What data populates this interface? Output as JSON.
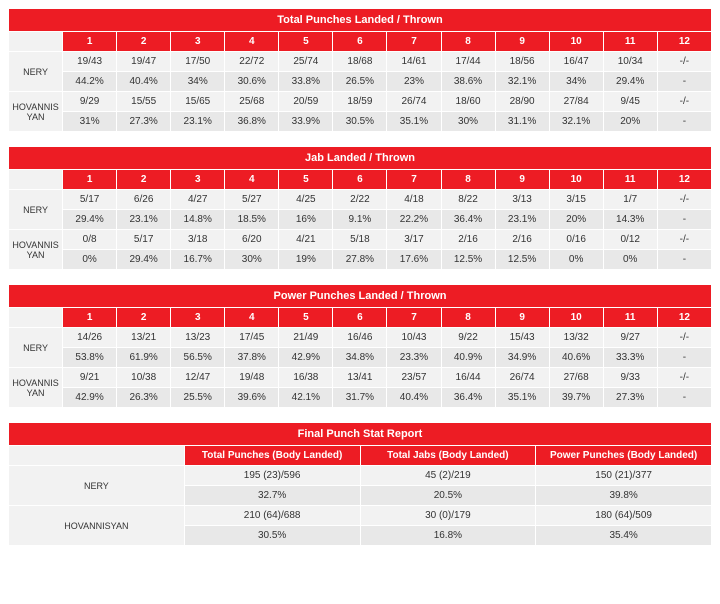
{
  "colors": {
    "header_bg": "#ed1c24",
    "header_text": "#ffffff",
    "row_alt_a": "#f2f2f2",
    "row_alt_b": "#e8e8e8",
    "text": "#333333",
    "border": "#ffffff"
  },
  "fighters": [
    "NERY",
    "HOVANNISYAN"
  ],
  "rounds": [
    "1",
    "2",
    "3",
    "4",
    "5",
    "6",
    "7",
    "8",
    "9",
    "10",
    "11",
    "12"
  ],
  "tables": [
    {
      "title": "Total Punches Landed / Thrown",
      "rows": [
        {
          "name": "NERY",
          "vals": [
            "19/43",
            "19/47",
            "17/50",
            "22/72",
            "25/74",
            "18/68",
            "14/61",
            "17/44",
            "18/56",
            "16/47",
            "10/34",
            "-/-"
          ]
        },
        {
          "name": "",
          "vals": [
            "44.2%",
            "40.4%",
            "34%",
            "30.6%",
            "33.8%",
            "26.5%",
            "23%",
            "38.6%",
            "32.1%",
            "34%",
            "29.4%",
            "-"
          ]
        },
        {
          "name": "HOVANNISYAN",
          "vals": [
            "9/29",
            "15/55",
            "15/65",
            "25/68",
            "20/59",
            "18/59",
            "26/74",
            "18/60",
            "28/90",
            "27/84",
            "9/45",
            "-/-"
          ]
        },
        {
          "name": "",
          "vals": [
            "31%",
            "27.3%",
            "23.1%",
            "36.8%",
            "33.9%",
            "30.5%",
            "35.1%",
            "30%",
            "31.1%",
            "32.1%",
            "20%",
            "-"
          ]
        }
      ]
    },
    {
      "title": "Jab Landed / Thrown",
      "rows": [
        {
          "name": "NERY",
          "vals": [
            "5/17",
            "6/26",
            "4/27",
            "5/27",
            "4/25",
            "2/22",
            "4/18",
            "8/22",
            "3/13",
            "3/15",
            "1/7",
            "-/-"
          ]
        },
        {
          "name": "",
          "vals": [
            "29.4%",
            "23.1%",
            "14.8%",
            "18.5%",
            "16%",
            "9.1%",
            "22.2%",
            "36.4%",
            "23.1%",
            "20%",
            "14.3%",
            "-"
          ]
        },
        {
          "name": "HOVANNISYAN",
          "vals": [
            "0/8",
            "5/17",
            "3/18",
            "6/20",
            "4/21",
            "5/18",
            "3/17",
            "2/16",
            "2/16",
            "0/16",
            "0/12",
            "-/-"
          ]
        },
        {
          "name": "",
          "vals": [
            "0%",
            "29.4%",
            "16.7%",
            "30%",
            "19%",
            "27.8%",
            "17.6%",
            "12.5%",
            "12.5%",
            "0%",
            "0%",
            "-"
          ]
        }
      ]
    },
    {
      "title": "Power Punches Landed / Thrown",
      "rows": [
        {
          "name": "NERY",
          "vals": [
            "14/26",
            "13/21",
            "13/23",
            "17/45",
            "21/49",
            "16/46",
            "10/43",
            "9/22",
            "15/43",
            "13/32",
            "9/27",
            "-/-"
          ]
        },
        {
          "name": "",
          "vals": [
            "53.8%",
            "61.9%",
            "56.5%",
            "37.8%",
            "42.9%",
            "34.8%",
            "23.3%",
            "40.9%",
            "34.9%",
            "40.6%",
            "33.3%",
            "-"
          ]
        },
        {
          "name": "HOVANNISYAN",
          "vals": [
            "9/21",
            "10/38",
            "12/47",
            "19/48",
            "16/38",
            "13/41",
            "23/57",
            "16/44",
            "26/74",
            "27/68",
            "9/33",
            "-/-"
          ]
        },
        {
          "name": "",
          "vals": [
            "42.9%",
            "26.3%",
            "25.5%",
            "39.6%",
            "42.1%",
            "31.7%",
            "40.4%",
            "36.4%",
            "35.1%",
            "39.7%",
            "27.3%",
            "-"
          ]
        }
      ]
    }
  ],
  "summary": {
    "title": "Final Punch Stat Report",
    "columns": [
      "Total Punches (Body Landed)",
      "Total Jabs (Body Landed)",
      "Power Punches (Body Landed)"
    ],
    "rows": [
      {
        "name": "NERY",
        "vals": [
          "195 (23)/596",
          "45 (2)/219",
          "150 (21)/377"
        ]
      },
      {
        "name": "",
        "vals": [
          "32.7%",
          "20.5%",
          "39.8%"
        ]
      },
      {
        "name": "HOVANNISYAN",
        "vals": [
          "210 (64)/688",
          "30 (0)/179",
          "180 (64)/509"
        ]
      },
      {
        "name": "",
        "vals": [
          "30.5%",
          "16.8%",
          "35.4%"
        ]
      }
    ]
  }
}
